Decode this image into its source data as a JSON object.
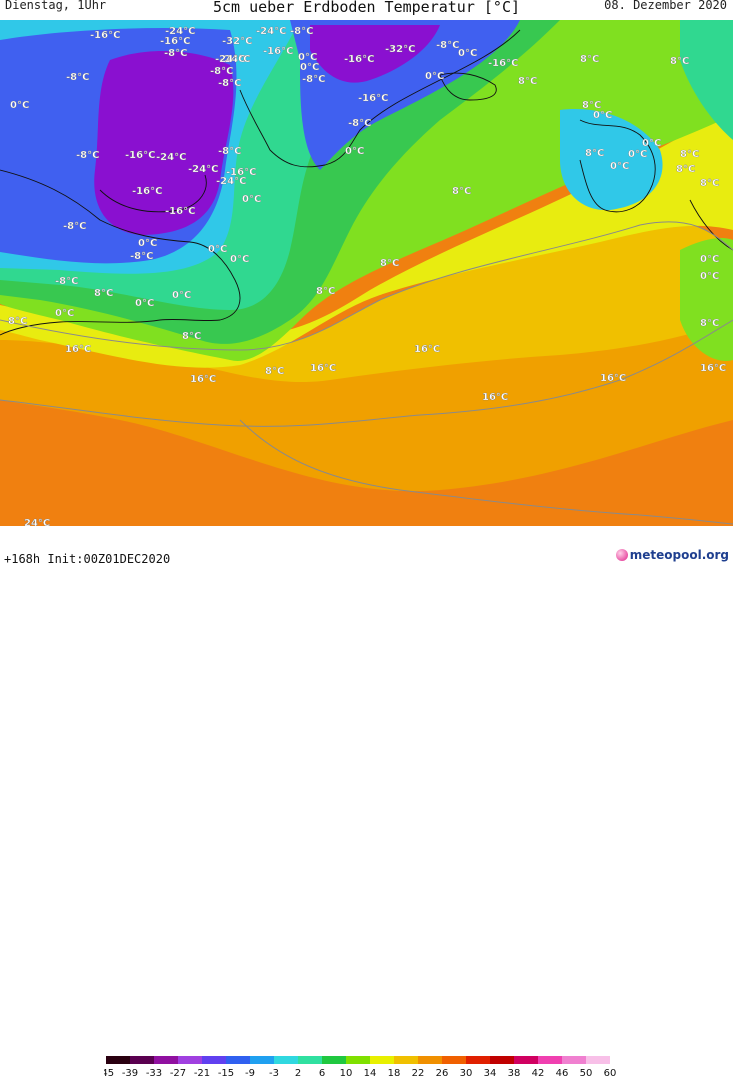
{
  "header": {
    "left": "Dienstag, 1Uhr",
    "title": "5cm ueber Erdboden Temperatur [°C]",
    "right": "08. Dezember 2020"
  },
  "footer": {
    "run": "+168h  Init:00Z01DEC2020",
    "brand": "meteopool.org"
  },
  "legend": {
    "ticks": [
      "-45",
      "-39",
      "-33",
      "-27",
      "-21",
      "-15",
      "-9",
      "-3",
      "2",
      "6",
      "10",
      "14",
      "18",
      "22",
      "26",
      "30",
      "34",
      "38",
      "42",
      "46",
      "50",
      "60"
    ],
    "colors": [
      "#2a0010",
      "#5a0050",
      "#9010a0",
      "#a040e0",
      "#6040f0",
      "#3060f0",
      "#20a0f0",
      "#30d8e0",
      "#30e0a0",
      "#20c840",
      "#80e000",
      "#e8f000",
      "#f0c000",
      "#f09000",
      "#f06000",
      "#e02000",
      "#c00000",
      "#d00060",
      "#f040b0",
      "#f080d0",
      "#f8c0e8"
    ]
  },
  "map_colors": {
    "very_cold": "#8a10d0",
    "cold": "#4060f0",
    "cool": "#30c8e8",
    "mild": "#30d890",
    "green": "#38c850",
    "lime": "#80e020",
    "yellow": "#e8ec10",
    "gold": "#f0c000",
    "orange": "#f0a000",
    "deep_orange": "#f08010"
  },
  "labels": [
    {
      "t": "-16°C"
    },
    {
      "t": "-24°C"
    },
    {
      "t": "-16°C"
    },
    {
      "t": "-8°C"
    },
    {
      "t": "-32°C"
    },
    {
      "t": "-24°C"
    },
    {
      "t": "-8°C"
    },
    {
      "t": "-24°C"
    },
    {
      "t": "-16°C"
    },
    {
      "t": "-32°C"
    },
    {
      "t": "-8°C"
    },
    {
      "t": "-8°C"
    },
    {
      "t": "-24°C"
    },
    {
      "t": "-16°C"
    },
    {
      "t": "-8°C"
    },
    {
      "t": "0°C"
    },
    {
      "t": "-16°C"
    },
    {
      "t": "-8°C"
    },
    {
      "t": "0°C"
    },
    {
      "t": "0°C"
    },
    {
      "t": "-16°C"
    },
    {
      "t": "-16°C"
    },
    {
      "t": "-24°C"
    },
    {
      "t": "-8°C"
    },
    {
      "t": "-24°C"
    },
    {
      "t": "-16°C"
    },
    {
      "t": "-8°C"
    },
    {
      "t": "0°C"
    },
    {
      "t": "8°C"
    },
    {
      "t": "0°C"
    },
    {
      "t": "8°C"
    },
    {
      "t": "0°C"
    },
    {
      "t": "-16°C"
    },
    {
      "t": "-24°C"
    },
    {
      "t": "-8°C"
    },
    {
      "t": "0°C"
    },
    {
      "t": "8°C"
    },
    {
      "t": "8°C"
    },
    {
      "t": "0°C"
    },
    {
      "t": "8°C"
    },
    {
      "t": "-8°C"
    },
    {
      "t": "-16°C"
    },
    {
      "t": "0°C"
    },
    {
      "t": "-8°C"
    },
    {
      "t": "0°C"
    },
    {
      "t": "0°C"
    },
    {
      "t": "8°C"
    },
    {
      "t": "8°C"
    },
    {
      "t": "8°C"
    },
    {
      "t": "-8°C"
    },
    {
      "t": "0°C"
    },
    {
      "t": "8°C"
    },
    {
      "t": "0°C"
    },
    {
      "t": "8°C"
    },
    {
      "t": "8°C"
    },
    {
      "t": "16°C"
    },
    {
      "t": "8°C"
    },
    {
      "t": "16°C"
    },
    {
      "t": "8°C"
    },
    {
      "t": "16°C"
    },
    {
      "t": "16°C"
    },
    {
      "t": "16°C"
    },
    {
      "t": "16°C"
    },
    {
      "t": "16°C"
    },
    {
      "t": "24°C"
    },
    {
      "t": "0°C"
    },
    {
      "t": "0°C"
    },
    {
      "t": "-8°C"
    },
    {
      "t": "0°C"
    },
    {
      "t": "0°C"
    },
    {
      "t": "8°C"
    },
    {
      "t": "0°C"
    },
    {
      "t": "0°C"
    },
    {
      "t": "8°C"
    },
    {
      "t": "8°C"
    }
  ]
}
